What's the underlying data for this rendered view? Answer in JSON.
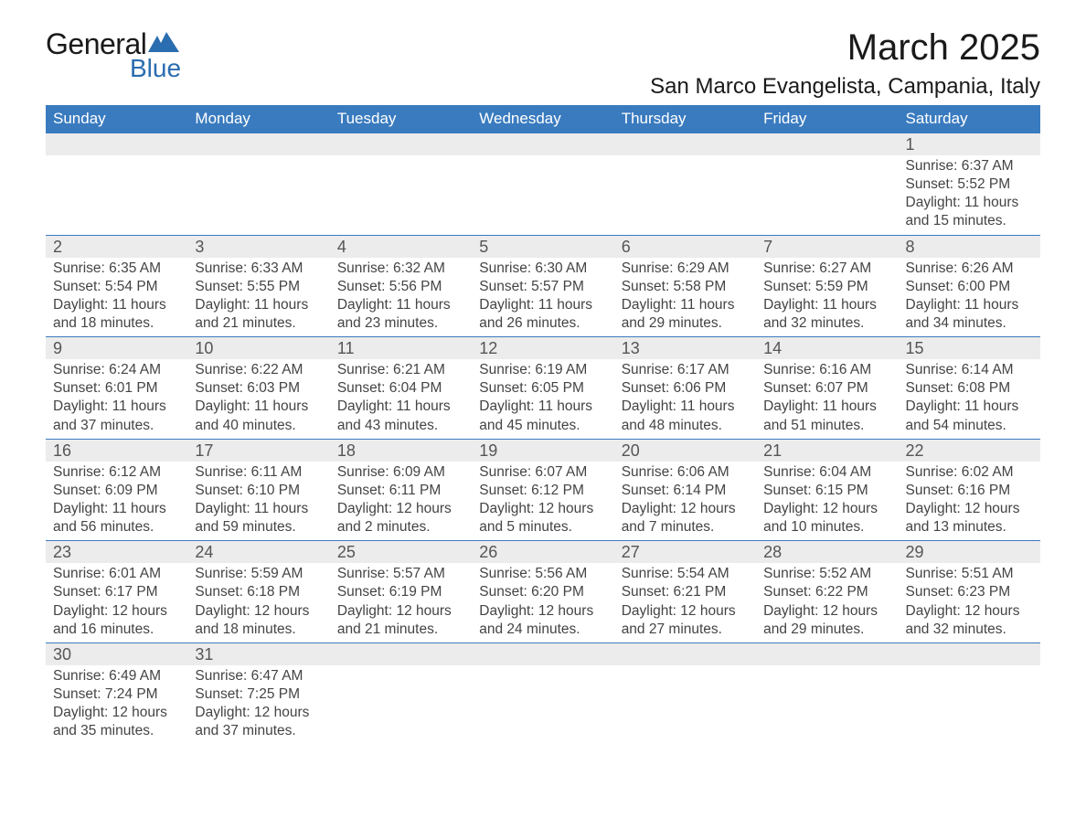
{
  "logo": {
    "text_general": "General",
    "text_blue": "Blue",
    "shape_color": "#2a6db0"
  },
  "title": "March 2025",
  "location": "San Marco Evangelista, Campania, Italy",
  "colors": {
    "header_bg": "#3a7bbf",
    "header_text": "#ffffff",
    "daynum_bg": "#ececec",
    "border": "#3a7bbf",
    "text": "#444444",
    "logo_blue": "#2a6db0"
  },
  "day_headers": [
    "Sunday",
    "Monday",
    "Tuesday",
    "Wednesday",
    "Thursday",
    "Friday",
    "Saturday"
  ],
  "weeks": [
    [
      null,
      null,
      null,
      null,
      null,
      null,
      {
        "n": "1",
        "sunrise": "Sunrise: 6:37 AM",
        "sunset": "Sunset: 5:52 PM",
        "daylight": "Daylight: 11 hours and 15 minutes."
      }
    ],
    [
      {
        "n": "2",
        "sunrise": "Sunrise: 6:35 AM",
        "sunset": "Sunset: 5:54 PM",
        "daylight": "Daylight: 11 hours and 18 minutes."
      },
      {
        "n": "3",
        "sunrise": "Sunrise: 6:33 AM",
        "sunset": "Sunset: 5:55 PM",
        "daylight": "Daylight: 11 hours and 21 minutes."
      },
      {
        "n": "4",
        "sunrise": "Sunrise: 6:32 AM",
        "sunset": "Sunset: 5:56 PM",
        "daylight": "Daylight: 11 hours and 23 minutes."
      },
      {
        "n": "5",
        "sunrise": "Sunrise: 6:30 AM",
        "sunset": "Sunset: 5:57 PM",
        "daylight": "Daylight: 11 hours and 26 minutes."
      },
      {
        "n": "6",
        "sunrise": "Sunrise: 6:29 AM",
        "sunset": "Sunset: 5:58 PM",
        "daylight": "Daylight: 11 hours and 29 minutes."
      },
      {
        "n": "7",
        "sunrise": "Sunrise: 6:27 AM",
        "sunset": "Sunset: 5:59 PM",
        "daylight": "Daylight: 11 hours and 32 minutes."
      },
      {
        "n": "8",
        "sunrise": "Sunrise: 6:26 AM",
        "sunset": "Sunset: 6:00 PM",
        "daylight": "Daylight: 11 hours and 34 minutes."
      }
    ],
    [
      {
        "n": "9",
        "sunrise": "Sunrise: 6:24 AM",
        "sunset": "Sunset: 6:01 PM",
        "daylight": "Daylight: 11 hours and 37 minutes."
      },
      {
        "n": "10",
        "sunrise": "Sunrise: 6:22 AM",
        "sunset": "Sunset: 6:03 PM",
        "daylight": "Daylight: 11 hours and 40 minutes."
      },
      {
        "n": "11",
        "sunrise": "Sunrise: 6:21 AM",
        "sunset": "Sunset: 6:04 PM",
        "daylight": "Daylight: 11 hours and 43 minutes."
      },
      {
        "n": "12",
        "sunrise": "Sunrise: 6:19 AM",
        "sunset": "Sunset: 6:05 PM",
        "daylight": "Daylight: 11 hours and 45 minutes."
      },
      {
        "n": "13",
        "sunrise": "Sunrise: 6:17 AM",
        "sunset": "Sunset: 6:06 PM",
        "daylight": "Daylight: 11 hours and 48 minutes."
      },
      {
        "n": "14",
        "sunrise": "Sunrise: 6:16 AM",
        "sunset": "Sunset: 6:07 PM",
        "daylight": "Daylight: 11 hours and 51 minutes."
      },
      {
        "n": "15",
        "sunrise": "Sunrise: 6:14 AM",
        "sunset": "Sunset: 6:08 PM",
        "daylight": "Daylight: 11 hours and 54 minutes."
      }
    ],
    [
      {
        "n": "16",
        "sunrise": "Sunrise: 6:12 AM",
        "sunset": "Sunset: 6:09 PM",
        "daylight": "Daylight: 11 hours and 56 minutes."
      },
      {
        "n": "17",
        "sunrise": "Sunrise: 6:11 AM",
        "sunset": "Sunset: 6:10 PM",
        "daylight": "Daylight: 11 hours and 59 minutes."
      },
      {
        "n": "18",
        "sunrise": "Sunrise: 6:09 AM",
        "sunset": "Sunset: 6:11 PM",
        "daylight": "Daylight: 12 hours and 2 minutes."
      },
      {
        "n": "19",
        "sunrise": "Sunrise: 6:07 AM",
        "sunset": "Sunset: 6:12 PM",
        "daylight": "Daylight: 12 hours and 5 minutes."
      },
      {
        "n": "20",
        "sunrise": "Sunrise: 6:06 AM",
        "sunset": "Sunset: 6:14 PM",
        "daylight": "Daylight: 12 hours and 7 minutes."
      },
      {
        "n": "21",
        "sunrise": "Sunrise: 6:04 AM",
        "sunset": "Sunset: 6:15 PM",
        "daylight": "Daylight: 12 hours and 10 minutes."
      },
      {
        "n": "22",
        "sunrise": "Sunrise: 6:02 AM",
        "sunset": "Sunset: 6:16 PM",
        "daylight": "Daylight: 12 hours and 13 minutes."
      }
    ],
    [
      {
        "n": "23",
        "sunrise": "Sunrise: 6:01 AM",
        "sunset": "Sunset: 6:17 PM",
        "daylight": "Daylight: 12 hours and 16 minutes."
      },
      {
        "n": "24",
        "sunrise": "Sunrise: 5:59 AM",
        "sunset": "Sunset: 6:18 PM",
        "daylight": "Daylight: 12 hours and 18 minutes."
      },
      {
        "n": "25",
        "sunrise": "Sunrise: 5:57 AM",
        "sunset": "Sunset: 6:19 PM",
        "daylight": "Daylight: 12 hours and 21 minutes."
      },
      {
        "n": "26",
        "sunrise": "Sunrise: 5:56 AM",
        "sunset": "Sunset: 6:20 PM",
        "daylight": "Daylight: 12 hours and 24 minutes."
      },
      {
        "n": "27",
        "sunrise": "Sunrise: 5:54 AM",
        "sunset": "Sunset: 6:21 PM",
        "daylight": "Daylight: 12 hours and 27 minutes."
      },
      {
        "n": "28",
        "sunrise": "Sunrise: 5:52 AM",
        "sunset": "Sunset: 6:22 PM",
        "daylight": "Daylight: 12 hours and 29 minutes."
      },
      {
        "n": "29",
        "sunrise": "Sunrise: 5:51 AM",
        "sunset": "Sunset: 6:23 PM",
        "daylight": "Daylight: 12 hours and 32 minutes."
      }
    ],
    [
      {
        "n": "30",
        "sunrise": "Sunrise: 6:49 AM",
        "sunset": "Sunset: 7:24 PM",
        "daylight": "Daylight: 12 hours and 35 minutes."
      },
      {
        "n": "31",
        "sunrise": "Sunrise: 6:47 AM",
        "sunset": "Sunset: 7:25 PM",
        "daylight": "Daylight: 12 hours and 37 minutes."
      },
      null,
      null,
      null,
      null,
      null
    ]
  ]
}
